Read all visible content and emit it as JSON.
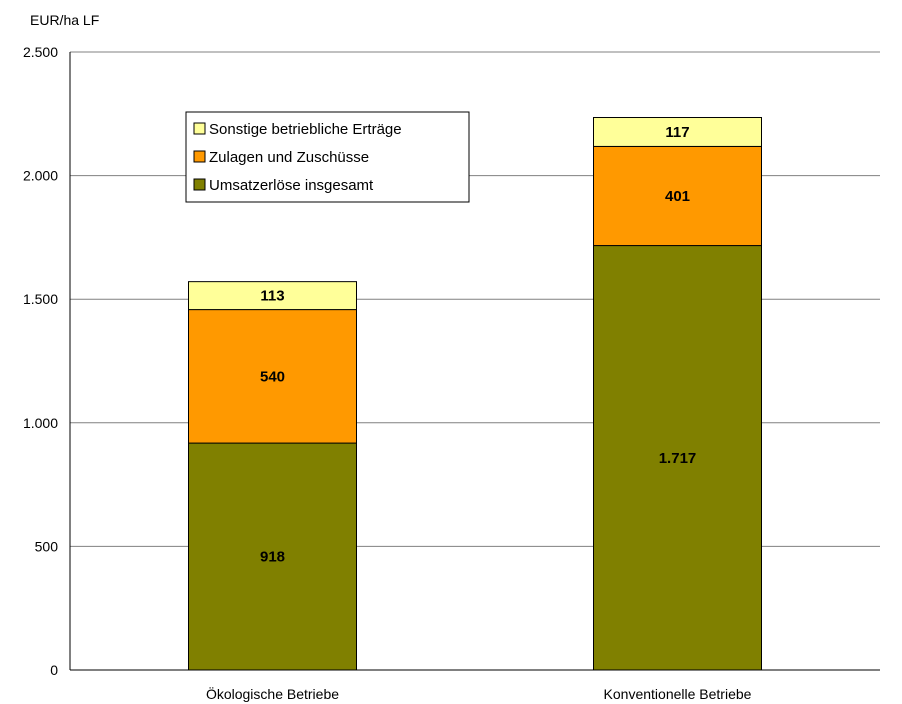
{
  "chart_data": {
    "type": "bar",
    "stacked": true,
    "ylabel": "EUR/ha LF",
    "ylim": [
      0,
      2500
    ],
    "y_ticks": [
      0,
      500,
      1000,
      1500,
      2000,
      2500
    ],
    "y_tick_labels": [
      "0",
      "500",
      "1.000",
      "1.500",
      "2.000",
      "2.500"
    ],
    "categories": [
      "Ökologische Betriebe",
      "Konventionelle Betriebe"
    ],
    "grid": true,
    "legend_position": "top-left",
    "series": [
      {
        "name": "Umsatzerlöse insgesamt",
        "values": [
          918,
          1717
        ],
        "labels": [
          "918",
          "1.717"
        ],
        "color": "#808000"
      },
      {
        "name": "Zulagen und Zuschüsse",
        "values": [
          540,
          401
        ],
        "labels": [
          "540",
          "401"
        ],
        "color": "#FF9900"
      },
      {
        "name": "Sonstige betriebliche Erträge",
        "values": [
          113,
          117
        ],
        "labels": [
          "113",
          "117"
        ],
        "color": "#FFFF99"
      }
    ],
    "legend_order": [
      2,
      1,
      0
    ]
  }
}
